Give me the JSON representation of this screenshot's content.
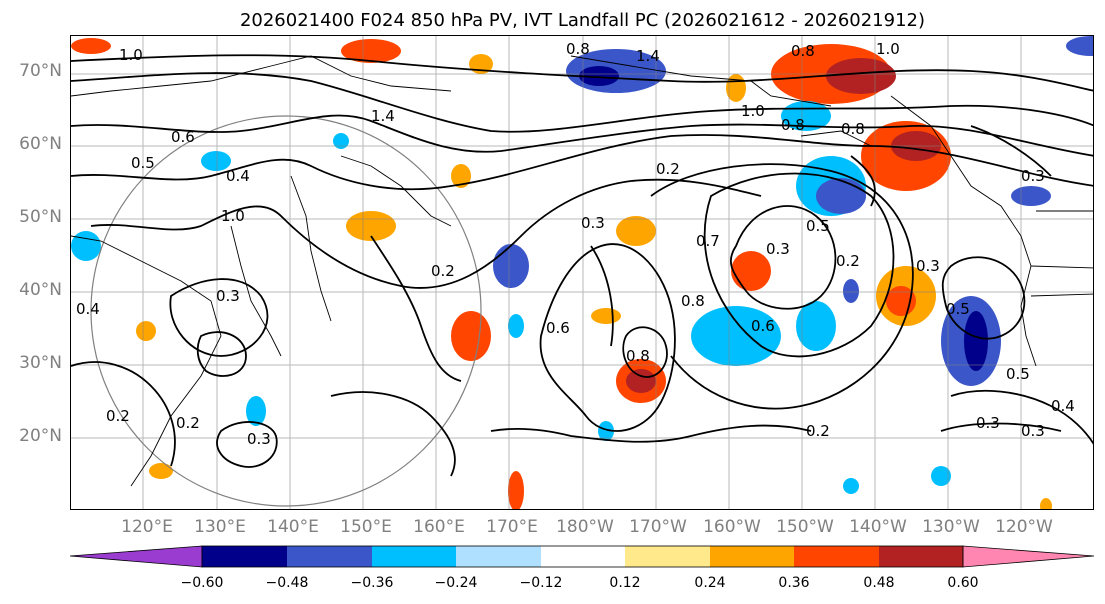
{
  "title": "2026021400 F024 850 hPa PV, IVT Landfall PC (2026021612 - 2026021912)",
  "map": {
    "projection": "cylindrical, Pacific-centered",
    "lat_labels": [
      "70°N",
      "60°N",
      "50°N",
      "40°N",
      "30°N",
      "20°N"
    ],
    "lon_labels": [
      "120°E",
      "130°E",
      "140°E",
      "150°E",
      "160°E",
      "170°E",
      "180°W",
      "170°W",
      "160°W",
      "150°W",
      "140°W",
      "130°W",
      "120°W"
    ],
    "contour_labels": [
      "0.8",
      "1.4",
      "0.8",
      "1.0",
      "1.0",
      "1.4",
      "1.0",
      "0.8",
      "0.6",
      "0.5",
      "1.0",
      "0.2",
      "0.3",
      "0.7",
      "0.3",
      "0.2",
      "0.8",
      "0.6",
      "0.8",
      "0.6",
      "0.5",
      "0.2",
      "0.5",
      "0.4",
      "0.3",
      "0.2",
      "0.2",
      "0.3",
      "0.3",
      "0.5",
      "0.4",
      "0.3",
      "0.3",
      "0.2",
      "0.4",
      "0.8",
      "0.3"
    ],
    "shading_field": "IVT Landfall PC",
    "contour_field": "850 hPa PV"
  },
  "colorbar": {
    "ticks": [
      "−0.60",
      "−0.48",
      "−0.36",
      "−0.24",
      "−0.12",
      "0.12",
      "0.24",
      "0.36",
      "0.48",
      "0.60"
    ],
    "colors": [
      "#9a3cd0",
      "#00008b",
      "#3a56c8",
      "#00bfff",
      "#b0e0ff",
      "#ffffff",
      "#ffe98a",
      "#ffa500",
      "#ff4500",
      "#b22222",
      "#ff86b0"
    ]
  }
}
